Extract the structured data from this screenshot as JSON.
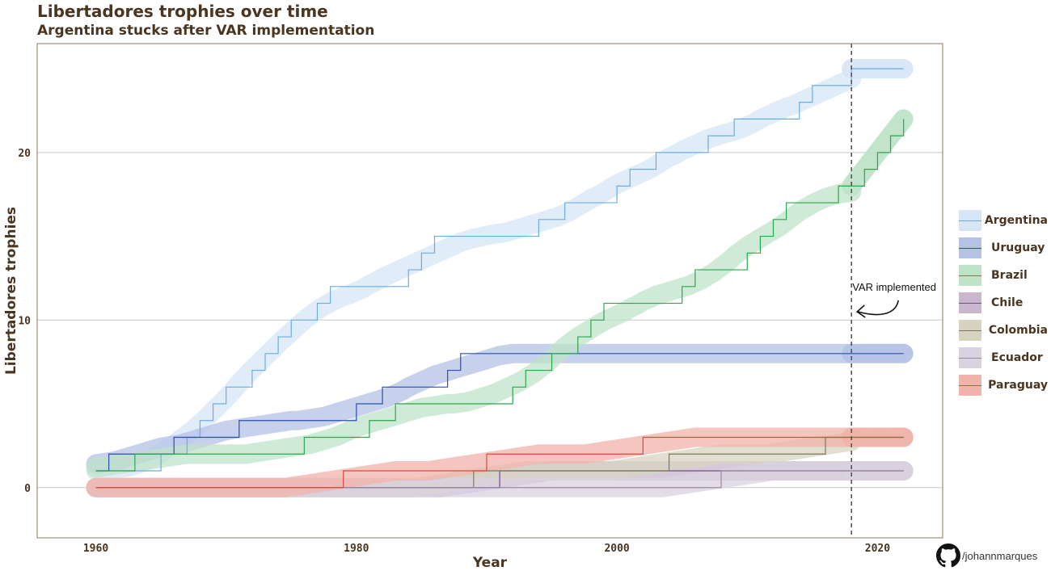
{
  "title": "Libertadores trophies over time",
  "subtitle": "Argentina stucks after VAR implementation",
  "credit": "/johannmarques",
  "credit_icon": "github-icon",
  "colors": {
    "text": "#4a3520",
    "panel_border": "#8a7a5a",
    "grid": "#c8c8c8",
    "annotation_line": "#555555"
  },
  "chart_data": {
    "type": "line",
    "step": true,
    "xlabel": "Year",
    "ylabel": "Libertadores trophies",
    "xlim": [
      1955.5,
      2025
    ],
    "ylim": [
      -3,
      26.5
    ],
    "xticks": [
      1960,
      1980,
      2000,
      2020
    ],
    "yticks": [
      0,
      10,
      20
    ],
    "grid": "horizontal major",
    "legend_position": "right",
    "annotation": {
      "text": "VAR implemented",
      "x": 2018,
      "style": "dashed vertical line with curved arrow"
    },
    "smooth_trend_bands": true,
    "series": [
      {
        "name": "Argentina",
        "color": "#6aaee0",
        "band": "#d7e6f7",
        "points": [
          [
            1960,
            1
          ],
          [
            1963,
            1
          ],
          [
            1964,
            1
          ],
          [
            1965,
            2
          ],
          [
            1967,
            3
          ],
          [
            1968,
            4
          ],
          [
            1969,
            5
          ],
          [
            1970,
            6
          ],
          [
            1972,
            7
          ],
          [
            1973,
            8
          ],
          [
            1974,
            9
          ],
          [
            1975,
            10
          ],
          [
            1977,
            11
          ],
          [
            1978,
            12
          ],
          [
            1984,
            13
          ],
          [
            1985,
            14
          ],
          [
            1986,
            15
          ],
          [
            1994,
            16
          ],
          [
            1996,
            17
          ],
          [
            2000,
            18
          ],
          [
            2001,
            19
          ],
          [
            2003,
            20
          ],
          [
            2007,
            21
          ],
          [
            2009,
            22
          ],
          [
            2014,
            23
          ],
          [
            2015,
            24
          ],
          [
            2018,
            25
          ],
          [
            2022,
            25
          ]
        ]
      },
      {
        "name": "Uruguay",
        "color": "#2a4fb0",
        "band": "#b4c2e6",
        "points": [
          [
            1960,
            1
          ],
          [
            1961,
            2
          ],
          [
            1966,
            3
          ],
          [
            1971,
            4
          ],
          [
            1980,
            5
          ],
          [
            1982,
            6
          ],
          [
            1987,
            7
          ],
          [
            1988,
            8
          ],
          [
            2022,
            8
          ]
        ]
      },
      {
        "name": "Brazil",
        "color": "#2aa84e",
        "band": "#bfe3c8",
        "points": [
          [
            1960,
            1
          ],
          [
            1962,
            1
          ],
          [
            1963,
            2
          ],
          [
            1976,
            3
          ],
          [
            1981,
            4
          ],
          [
            1983,
            5
          ],
          [
            1992,
            6
          ],
          [
            1993,
            7
          ],
          [
            1995,
            8
          ],
          [
            1997,
            9
          ],
          [
            1998,
            10
          ],
          [
            1999,
            11
          ],
          [
            2005,
            12
          ],
          [
            2006,
            13
          ],
          [
            2010,
            14
          ],
          [
            2011,
            15
          ],
          [
            2012,
            16
          ],
          [
            2013,
            17
          ],
          [
            2017,
            18
          ],
          [
            2019,
            19
          ],
          [
            2020,
            20
          ],
          [
            2021,
            21
          ],
          [
            2022,
            22
          ]
        ]
      },
      {
        "name": "Chile",
        "color": "#7a4a8a",
        "band": "#c9b7d0",
        "points": [
          [
            1960,
            0
          ],
          [
            1991,
            1
          ],
          [
            2022,
            1
          ]
        ]
      },
      {
        "name": "Colombia",
        "color": "#7a7a5a",
        "band": "#d6d4c0",
        "points": [
          [
            1960,
            0
          ],
          [
            1989,
            1
          ],
          [
            2004,
            2
          ],
          [
            2016,
            3
          ],
          [
            2022,
            3
          ]
        ]
      },
      {
        "name": "Ecuador",
        "color": "#9a8aa8",
        "band": "#d9d2e0",
        "points": [
          [
            1960,
            0
          ],
          [
            2008,
            1
          ],
          [
            2022,
            1
          ]
        ]
      },
      {
        "name": "Paraguay",
        "color": "#e0473a",
        "band": "#f1b3ab",
        "points": [
          [
            1960,
            0
          ],
          [
            1979,
            1
          ],
          [
            1990,
            2
          ],
          [
            2002,
            3
          ],
          [
            2022,
            3
          ]
        ]
      }
    ]
  }
}
